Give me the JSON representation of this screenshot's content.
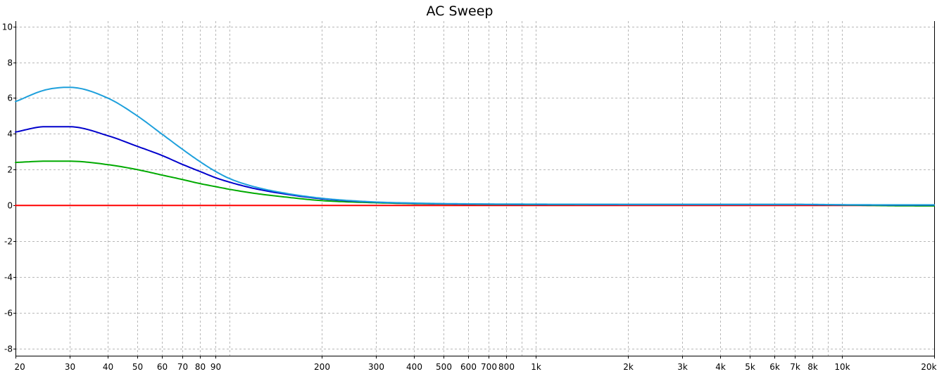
{
  "chart_data": {
    "type": "line",
    "title": "AC Sweep",
    "xlabel": "",
    "ylabel": "",
    "xscale": "log",
    "xlim": [
      20,
      20000
    ],
    "ylim": [
      -8.4,
      10.3
    ],
    "grid": true,
    "x_ticks": [
      {
        "value": 20,
        "label": "20"
      },
      {
        "value": 30,
        "label": "30"
      },
      {
        "value": 40,
        "label": "40"
      },
      {
        "value": 50,
        "label": "50"
      },
      {
        "value": 60,
        "label": "60"
      },
      {
        "value": 70,
        "label": "70"
      },
      {
        "value": 80,
        "label": "80"
      },
      {
        "value": 90,
        "label": "90"
      },
      {
        "value": 200,
        "label": "200"
      },
      {
        "value": 300,
        "label": "300"
      },
      {
        "value": 400,
        "label": "400"
      },
      {
        "value": 500,
        "label": "500"
      },
      {
        "value": 600,
        "label": "600"
      },
      {
        "value": 700,
        "label": "700"
      },
      {
        "value": 800,
        "label": "800"
      },
      {
        "value": 1000,
        "label": "1k"
      },
      {
        "value": 2000,
        "label": "2k"
      },
      {
        "value": 3000,
        "label": "3k"
      },
      {
        "value": 4000,
        "label": "4k"
      },
      {
        "value": 5000,
        "label": "5k"
      },
      {
        "value": 6000,
        "label": "6k"
      },
      {
        "value": 7000,
        "label": "7k"
      },
      {
        "value": 8000,
        "label": "8k"
      },
      {
        "value": 10000,
        "label": "10k"
      },
      {
        "value": 20000,
        "label": "20k"
      }
    ],
    "x_minor_gridlines": [
      100,
      900,
      9000
    ],
    "y_ticks": [
      {
        "value": 10,
        "label": "10"
      },
      {
        "value": 8,
        "label": "8"
      },
      {
        "value": 6,
        "label": "6"
      },
      {
        "value": 4,
        "label": "4"
      },
      {
        "value": 2,
        "label": "2"
      },
      {
        "value": 0,
        "label": "0"
      },
      {
        "value": -2,
        "label": "-2"
      },
      {
        "value": -4,
        "label": "-4"
      },
      {
        "value": -6,
        "label": "-6"
      },
      {
        "value": -8,
        "label": "-8"
      }
    ],
    "series": [
      {
        "color": "#ff0000",
        "x": [
          20,
          20000
        ],
        "y": [
          0,
          0
        ]
      },
      {
        "color": "#00aa00",
        "x": [
          20,
          25,
          30,
          40,
          50,
          60,
          70,
          80,
          90,
          100,
          120,
          150,
          200,
          300,
          400,
          500,
          700,
          1000,
          2000,
          5000,
          7000,
          10000,
          15000,
          20000
        ],
        "y": [
          2.4,
          2.47,
          2.47,
          2.28,
          2.0,
          1.7,
          1.45,
          1.22,
          1.05,
          0.9,
          0.68,
          0.48,
          0.27,
          0.15,
          0.1,
          0.08,
          0.06,
          0.05,
          0.05,
          0.05,
          0.05,
          0.02,
          -0.02,
          -0.03
        ]
      },
      {
        "color": "#0000cc",
        "x": [
          20,
          25,
          30,
          40,
          50,
          60,
          70,
          80,
          90,
          100,
          120,
          150,
          200,
          300,
          400,
          500,
          700,
          1000,
          2000,
          5000,
          7000,
          10000,
          15000,
          20000
        ],
        "y": [
          4.1,
          4.4,
          4.4,
          3.9,
          3.3,
          2.8,
          2.3,
          1.9,
          1.55,
          1.3,
          0.95,
          0.65,
          0.37,
          0.18,
          0.12,
          0.09,
          0.07,
          0.06,
          0.05,
          0.05,
          0.05,
          0.03,
          0.02,
          0.02
        ]
      },
      {
        "color": "#1ea0dc",
        "x": [
          20,
          25,
          30,
          40,
          50,
          60,
          70,
          80,
          90,
          100,
          120,
          150,
          200,
          300,
          400,
          500,
          700,
          1000,
          2000,
          5000,
          7000,
          10000,
          15000,
          20000
        ],
        "y": [
          5.8,
          6.45,
          6.6,
          6.0,
          5.0,
          4.0,
          3.15,
          2.45,
          1.9,
          1.5,
          1.05,
          0.7,
          0.4,
          0.19,
          0.13,
          0.1,
          0.08,
          0.07,
          0.06,
          0.06,
          0.06,
          0.04,
          0.03,
          0.03
        ]
      }
    ]
  }
}
